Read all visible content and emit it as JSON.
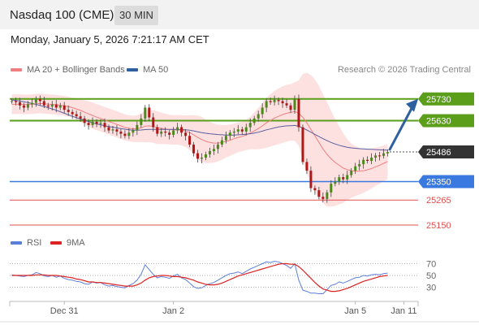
{
  "header": {
    "title": "Nasdaq 100 (CME)",
    "timeframe": "30 MIN",
    "datetime": "Monday, January 5, 2026 7:21:17 AM CET"
  },
  "legend": {
    "bollinger_label": "MA 20 + Bollinger Bands",
    "ma50_label": "MA 50",
    "copyright": "Research © 2026 Trading Central",
    "rsi_label": "RSI",
    "ma9_label": "9MA"
  },
  "colors": {
    "resistance": "#5a9e1a",
    "support": "#3a7ae0",
    "target_red": "#e05050",
    "current_price_bg": "#333333",
    "bollinger_fill": "#fde0e0",
    "ma20": "#f08080",
    "ma50": "#5b5fa0",
    "rsi": "#5b7fd8",
    "rsi_ma": "#dd2222",
    "candle_up": "#4a8a1a",
    "candle_down": "#b01818",
    "arrow": "#2e5f9e"
  },
  "chart_data": {
    "type": "candlestick",
    "price_levels": [
      {
        "value": 25730,
        "label": "25730",
        "kind": "resistance"
      },
      {
        "value": 25630,
        "label": "25630",
        "kind": "resistance"
      },
      {
        "value": 25486,
        "label": "25486",
        "kind": "current"
      },
      {
        "value": 25350,
        "label": "25350",
        "kind": "support"
      },
      {
        "value": 25265,
        "label": "25265",
        "kind": "target"
      },
      {
        "value": 25150,
        "label": "25150",
        "kind": "target"
      }
    ],
    "close_series": [
      25720,
      25715,
      25700,
      25690,
      25705,
      25712,
      25730,
      25720,
      25700,
      25695,
      25705,
      25690,
      25700,
      25680,
      25670,
      25660,
      25650,
      25640,
      25620,
      25610,
      25625,
      25615,
      25620,
      25600,
      25585,
      25590,
      25580,
      25570,
      25560,
      25575,
      25585,
      25610,
      25640,
      25690,
      25645,
      25600,
      25570,
      25580,
      25575,
      25565,
      25585,
      25600,
      25575,
      25560,
      25520,
      25480,
      25455,
      25460,
      25475,
      25490,
      25500,
      25520,
      25540,
      25560,
      25575,
      25580,
      25590,
      25580,
      25600,
      25620,
      25640,
      25660,
      25690,
      25720,
      25715,
      25725,
      25720,
      25710,
      25700,
      25680,
      25730,
      25600,
      25440,
      25400,
      25320,
      25310,
      25280,
      25270,
      25300,
      25340,
      25350,
      25370,
      25360,
      25380,
      25400,
      25420,
      25430,
      25450,
      25445,
      25460,
      25470,
      25468,
      25480,
      25486
    ],
    "ma20": [
      25705,
      25706,
      25706,
      25705,
      25705,
      25706,
      25708,
      25709,
      25708,
      25706,
      25705,
      25703,
      25701,
      25698,
      25695,
      25690,
      25684,
      25677,
      25669,
      25661,
      25654,
      25646,
      25640,
      25633,
      25626,
      25620,
      25613,
      25606,
      25599,
      25595,
      25592,
      25593,
      25597,
      25605,
      25606,
      25603,
      25598,
      25595,
      25592,
      25589,
      25588,
      25588,
      25586,
      25582,
      25575,
      25565,
      25553,
      25543,
      25535,
      25530,
      25527,
      25527,
      25530,
      25535,
      25540,
      25547,
      25553,
      25558,
      25565,
      25573,
      25583,
      25594,
      25606,
      25620,
      25631,
      25642,
      25650,
      25658,
      25664,
      25668,
      25672,
      25665,
      25645,
      25620,
      25590,
      25560,
      25530,
      25500,
      25475,
      25455,
      25438,
      25425,
      25412,
      25405,
      25400,
      25398,
      25398,
      25400,
      25404,
      25410,
      25418,
      25425,
      25434,
      25442
    ],
    "bb_width": [
      45,
      45,
      45,
      45,
      45,
      45,
      45,
      45,
      45,
      45,
      45,
      45,
      45,
      45,
      45,
      45,
      50,
      52,
      55,
      58,
      60,
      60,
      60,
      60,
      60,
      60,
      60,
      60,
      60,
      60,
      60,
      62,
      65,
      75,
      75,
      75,
      75,
      72,
      70,
      68,
      68,
      68,
      70,
      72,
      80,
      90,
      100,
      105,
      100,
      95,
      90,
      85,
      80,
      75,
      72,
      70,
      68,
      68,
      70,
      75,
      85,
      95,
      105,
      115,
      120,
      125,
      128,
      130,
      130,
      130,
      135,
      150,
      200,
      230,
      250,
      260,
      260,
      250,
      240,
      220,
      200,
      180,
      160,
      140,
      125,
      115,
      108,
      102,
      96,
      92,
      88,
      85,
      82,
      80
    ],
    "ma50": [
      25725,
      25723,
      25720,
      25717,
      25713,
      25709,
      25705,
      25700,
      25695,
      25690,
      25684,
      25678,
      25671,
      25664,
      25657,
      25650,
      25644,
      25638,
      25632,
      25626,
      25620,
      25615,
      25611,
      25607,
      25603,
      25600,
      25597,
      25594,
      25591,
      25588,
      25586,
      25586,
      25587,
      25589,
      25590,
      25590,
      25590,
      25590,
      25590,
      25590,
      25590,
      25590,
      25589,
      25588,
      25586,
      25583,
      25579,
      25575,
      25572,
      25570,
      25568,
      25566,
      25565,
      25564,
      25564,
      25564,
      25565,
      25566,
      25568,
      25570,
      25573,
      25577,
      25582,
      25588,
      25592,
      25597,
      25601,
      25604,
      25606,
      25607,
      25608,
      25604,
      25596,
      25587,
      25577,
      25567,
      25557,
      25547,
      25538,
      25530,
      25523,
      25517,
      25512,
      25508,
      25505,
      25503,
      25501,
      25500,
      25499,
      25498,
      25497,
      25496,
      25495,
      25494
    ],
    "rsi": [
      51,
      50,
      49,
      48,
      50,
      51,
      55,
      53,
      49,
      48,
      50,
      47,
      49,
      45,
      43,
      42,
      40,
      39,
      36,
      35,
      39,
      37,
      38,
      34,
      32,
      33,
      31,
      30,
      29,
      33,
      36,
      42,
      52,
      68,
      60,
      52,
      46,
      48,
      47,
      45,
      49,
      52,
      46,
      43,
      37,
      31,
      28,
      29,
      33,
      36,
      38,
      42,
      46,
      50,
      53,
      54,
      56,
      53,
      57,
      61,
      64,
      67,
      70,
      73,
      72,
      74,
      73,
      70,
      67,
      62,
      70,
      42,
      25,
      23,
      20,
      20,
      19,
      19,
      26,
      33,
      35,
      39,
      37,
      40,
      43,
      46,
      47,
      50,
      49,
      51,
      52,
      51,
      53,
      54
    ],
    "rsi_ma": [
      50,
      50,
      50,
      50,
      50,
      50,
      51,
      51,
      51,
      50,
      50,
      50,
      49,
      48,
      47,
      46,
      44,
      43,
      41,
      39,
      39,
      38,
      38,
      37,
      36,
      35,
      34,
      33,
      32,
      32,
      32,
      34,
      37,
      42,
      46,
      48,
      49,
      50,
      50,
      49,
      48,
      48,
      47,
      46,
      44,
      42,
      39,
      37,
      35,
      34,
      34,
      35,
      37,
      40,
      43,
      46,
      49,
      51,
      53,
      55,
      57,
      59,
      61,
      63,
      65,
      67,
      69,
      70,
      70,
      69,
      69,
      65,
      59,
      52,
      45,
      38,
      32,
      27,
      25,
      23,
      23,
      24,
      26,
      28,
      31,
      34,
      37,
      40,
      42,
      44,
      46,
      48,
      49,
      50
    ],
    "rsi_ticks": [
      {
        "value": 70,
        "label": "70"
      },
      {
        "value": 50,
        "label": "50"
      },
      {
        "value": 30,
        "label": "30"
      }
    ],
    "x_tick_labels": [
      {
        "index": 13,
        "label": "Dec 31"
      },
      {
        "index": 40,
        "label": "Jan 2"
      },
      {
        "index": 85,
        "label": "Jan 5"
      },
      {
        "index": 97,
        "label": "Jan 11"
      }
    ],
    "price_range": [
      25120,
      25830
    ],
    "rsi_range": [
      10,
      90
    ]
  }
}
